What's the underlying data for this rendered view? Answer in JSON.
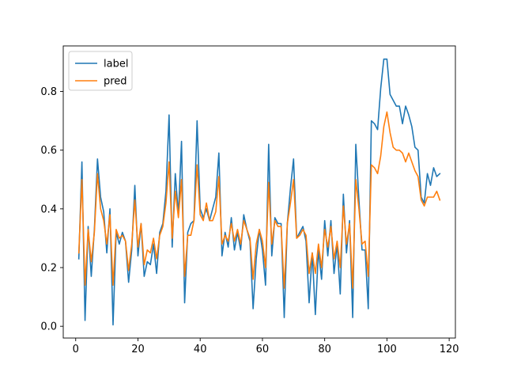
{
  "chart_data": {
    "type": "line",
    "title": "",
    "xlabel": "",
    "ylabel": "",
    "xlim": [
      -4,
      122
    ],
    "ylim": [
      -0.04,
      0.955
    ],
    "xticks": [
      0,
      20,
      40,
      60,
      80,
      100,
      120
    ],
    "yticks": [
      0.0,
      0.2,
      0.4,
      0.6,
      0.8
    ],
    "xtick_labels": [
      "0",
      "20",
      "40",
      "60",
      "80",
      "100",
      "120"
    ],
    "ytick_labels": [
      "0.0",
      "0.2",
      "0.4",
      "0.6",
      "0.8"
    ],
    "grid": false,
    "legend_position": "top-left",
    "x": [
      1,
      2,
      3,
      4,
      5,
      6,
      7,
      8,
      9,
      10,
      11,
      12,
      13,
      14,
      15,
      16,
      17,
      18,
      19,
      20,
      21,
      22,
      23,
      24,
      25,
      26,
      27,
      28,
      29,
      30,
      31,
      32,
      33,
      34,
      35,
      36,
      37,
      38,
      39,
      40,
      41,
      42,
      43,
      44,
      45,
      46,
      47,
      48,
      49,
      50,
      51,
      52,
      53,
      54,
      55,
      56,
      57,
      58,
      59,
      60,
      61,
      62,
      63,
      64,
      65,
      66,
      67,
      68,
      69,
      70,
      71,
      72,
      73,
      74,
      75,
      76,
      77,
      78,
      79,
      80,
      81,
      82,
      83,
      84,
      85,
      86,
      87,
      88,
      89,
      90,
      91,
      92,
      93,
      94,
      95,
      96,
      97,
      98,
      99,
      100,
      101,
      102,
      103,
      104,
      105,
      106,
      107,
      108,
      109,
      110,
      111,
      112,
      113,
      114,
      115,
      116,
      117
    ],
    "series": [
      {
        "name": "label",
        "color": "#1f77b4",
        "values": [
          0.23,
          0.56,
          0.02,
          0.34,
          0.17,
          0.33,
          0.57,
          0.44,
          0.39,
          0.25,
          0.4,
          0.005,
          0.32,
          0.28,
          0.32,
          0.29,
          0.15,
          0.26,
          0.48,
          0.24,
          0.35,
          0.17,
          0.22,
          0.21,
          0.28,
          0.18,
          0.32,
          0.35,
          0.46,
          0.72,
          0.27,
          0.52,
          0.38,
          0.63,
          0.08,
          0.32,
          0.35,
          0.36,
          0.7,
          0.4,
          0.37,
          0.4,
          0.36,
          0.4,
          0.44,
          0.59,
          0.24,
          0.32,
          0.27,
          0.37,
          0.26,
          0.32,
          0.26,
          0.38,
          0.33,
          0.29,
          0.06,
          0.23,
          0.33,
          0.26,
          0.14,
          0.62,
          0.24,
          0.37,
          0.35,
          0.35,
          0.03,
          0.35,
          0.47,
          0.57,
          0.3,
          0.32,
          0.34,
          0.29,
          0.08,
          0.25,
          0.04,
          0.26,
          0.16,
          0.36,
          0.24,
          0.36,
          0.18,
          0.28,
          0.11,
          0.45,
          0.25,
          0.36,
          0.03,
          0.62,
          0.43,
          0.26,
          0.26,
          0.06,
          0.7,
          0.69,
          0.67,
          0.81,
          0.91,
          0.91,
          0.79,
          0.77,
          0.75,
          0.75,
          0.69,
          0.75,
          0.72,
          0.68,
          0.61,
          0.6,
          0.44,
          0.42,
          0.52,
          0.48,
          0.54,
          0.51,
          0.52
        ]
      },
      {
        "name": "pred",
        "color": "#ff7f0e",
        "values": [
          0.25,
          0.5,
          0.14,
          0.33,
          0.22,
          0.32,
          0.52,
          0.4,
          0.36,
          0.28,
          0.38,
          0.14,
          0.33,
          0.3,
          0.31,
          0.29,
          0.19,
          0.28,
          0.43,
          0.27,
          0.35,
          0.21,
          0.26,
          0.25,
          0.3,
          0.23,
          0.31,
          0.34,
          0.42,
          0.56,
          0.3,
          0.46,
          0.37,
          0.5,
          0.17,
          0.31,
          0.31,
          0.36,
          0.55,
          0.38,
          0.36,
          0.42,
          0.36,
          0.36,
          0.39,
          0.51,
          0.28,
          0.31,
          0.29,
          0.35,
          0.29,
          0.33,
          0.28,
          0.36,
          0.33,
          0.3,
          0.16,
          0.28,
          0.33,
          0.29,
          0.2,
          0.49,
          0.28,
          0.36,
          0.34,
          0.34,
          0.13,
          0.35,
          0.42,
          0.5,
          0.3,
          0.31,
          0.33,
          0.31,
          0.18,
          0.25,
          0.18,
          0.28,
          0.2,
          0.33,
          0.27,
          0.34,
          0.23,
          0.29,
          0.2,
          0.41,
          0.28,
          0.35,
          0.13,
          0.5,
          0.4,
          0.28,
          0.29,
          0.17,
          0.55,
          0.54,
          0.52,
          0.58,
          0.68,
          0.73,
          0.66,
          0.61,
          0.6,
          0.6,
          0.59,
          0.56,
          0.59,
          0.56,
          0.53,
          0.51,
          0.43,
          0.41,
          0.44,
          0.44,
          0.44,
          0.46,
          0.43
        ]
      }
    ]
  }
}
